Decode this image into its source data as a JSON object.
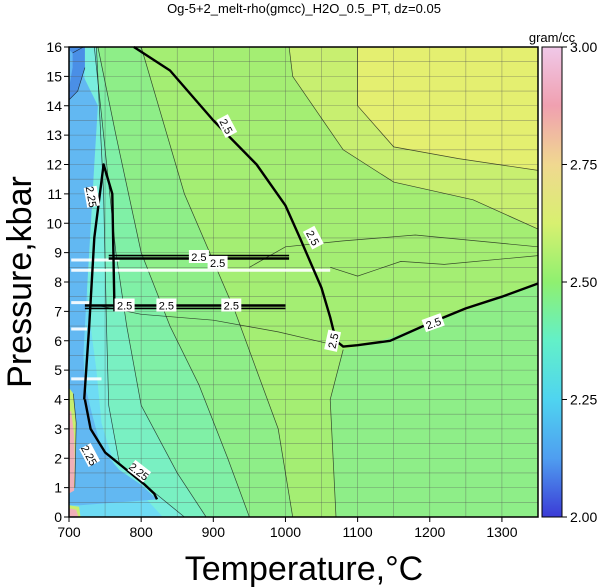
{
  "chart_data": {
    "type": "heatmap",
    "title": "Og-5+2_melt-rho(gmcc)_H2O_0.5_PT, dz=0.05",
    "xlabel": "Temperature,°C",
    "ylabel": "Pressure,kbar",
    "xlim": [
      700,
      1350
    ],
    "ylim": [
      0,
      16
    ],
    "x_ticks": [
      "700",
      "800",
      "900",
      "1000",
      "1100",
      "1200",
      "1300"
    ],
    "y_ticks": [
      "0",
      "1",
      "2",
      "3",
      "4",
      "5",
      "6",
      "7",
      "8",
      "9",
      "10",
      "11",
      "12",
      "13",
      "14",
      "15",
      "16"
    ],
    "grid": true,
    "colorbar": {
      "unit": "gram/cc",
      "range": [
        2.0,
        3.0
      ],
      "ticks": [
        "2.00",
        "2.25",
        "2.50",
        "2.75",
        "3.00"
      ],
      "colors": [
        "#3b3bd6",
        "#4f9ef0",
        "#4fd4f0",
        "#63f0c8",
        "#8ff070",
        "#d8f070",
        "#f0d890",
        "#f0a0b0",
        "#f0c8e8"
      ]
    },
    "fill_colors": {
      "rho_2_15": "#4a8fe6",
      "rho_2_20": "#62b8f2",
      "rho_2_25": "#6edbf4",
      "rho_2_30": "#79eedd",
      "rho_2_35": "#79f0c2",
      "rho_2_40": "#80f0a6",
      "rho_2_45": "#8eee88",
      "rho_2_50": "#a4ee73",
      "rho_2_55": "#c8ef70",
      "rho_2_60": "#e4ef70",
      "rho_3_00": "#f0b0b8"
    },
    "contour_labels": [
      "2.5",
      "2.5",
      "2.5",
      "2.5",
      "2.5",
      "2.5",
      "2.5",
      "2.5",
      "2.5",
      "2.25",
      "2.25",
      "2.25"
    ],
    "contour_2_5_main": {
      "x": [
        790,
        840,
        900,
        960,
        1000,
        1020,
        1050,
        1062,
        1070,
        1080,
        1100,
        1145,
        1200,
        1250,
        1300,
        1350
      ],
      "y": [
        16,
        15.2,
        13.5,
        12,
        10.6,
        9.5,
        7.8,
        6.8,
        6.0,
        5.8,
        5.85,
        6.0,
        6.6,
        7.1,
        7.5,
        7.95
      ]
    },
    "contour_2_5_band_upper": {
      "x": [
        755,
        1005
      ],
      "y": [
        8.8,
        8.8
      ]
    },
    "contour_2_5_band_lower": {
      "x": [
        722,
        1000
      ],
      "y": [
        7.2,
        7.2
      ]
    },
    "contour_2_25_left": {
      "x": [
        721,
        728,
        735,
        748,
        760,
        763
      ],
      "y": [
        4.0,
        6.5,
        9.5,
        12.0,
        11.0,
        7.0
      ]
    },
    "contour_2_25_bottom": {
      "x": [
        722,
        730,
        750,
        780,
        805,
        818,
        822
      ],
      "y": [
        4.0,
        3.0,
        2.2,
        1.6,
        1.1,
        0.8,
        0.6
      ]
    }
  }
}
